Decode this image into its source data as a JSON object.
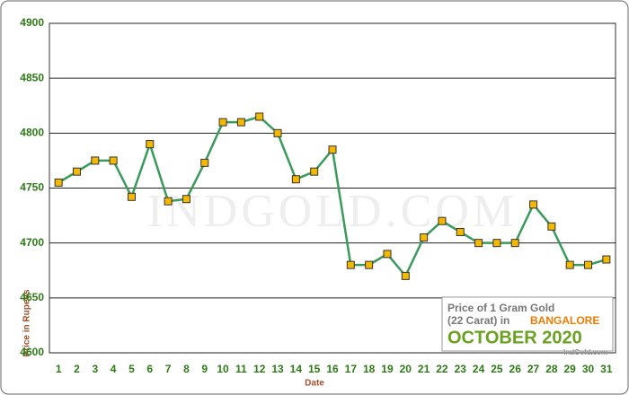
{
  "chart_data": {
    "type": "line",
    "xlabel": "Date",
    "ylabel": "Price in Rupees",
    "categories": [
      "1",
      "2",
      "3",
      "4",
      "5",
      "6",
      "7",
      "8",
      "9",
      "10",
      "11",
      "12",
      "13",
      "14",
      "15",
      "16",
      "17",
      "18",
      "19",
      "20",
      "21",
      "22",
      "23",
      "24",
      "25",
      "26",
      "27",
      "28",
      "29",
      "30",
      "31"
    ],
    "series": [
      {
        "name": "Price",
        "color": "#3a9a5c",
        "marker_color": "#f5b800",
        "values": [
          4755,
          4765,
          4775,
          4775,
          4742,
          4790,
          4738,
          4740,
          4773,
          4810,
          4810,
          4815,
          4800,
          4758,
          4765,
          4785,
          4680,
          4680,
          4690,
          4670,
          4705,
          4720,
          4710,
          4700,
          4700,
          4700,
          4735,
          4715,
          4680,
          4680,
          4685
        ]
      }
    ],
    "ylim": [
      4600,
      4900
    ],
    "yticks": [
      4600,
      4650,
      4700,
      4750,
      4800,
      4850,
      4900
    ],
    "grid": true,
    "watermark": "INDGOLD.COM",
    "info": {
      "line1": "Price of 1 Gram Gold",
      "line2": "(22 Carat) in",
      "city": "BANGALORE",
      "period": "OCTOBER 2020",
      "site": "IndGold.com"
    }
  }
}
